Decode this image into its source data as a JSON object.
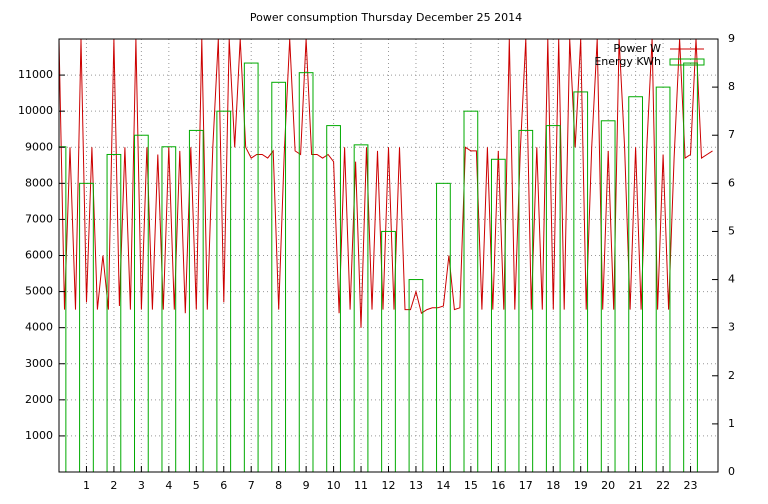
{
  "chart_data": {
    "type": "line",
    "title": "Power consumption Thursday December 25 2014",
    "xlim": [
      0,
      24
    ],
    "xticks": [
      1,
      2,
      3,
      4,
      5,
      6,
      7,
      8,
      9,
      10,
      11,
      12,
      13,
      14,
      15,
      16,
      17,
      18,
      19,
      20,
      21,
      22,
      23
    ],
    "ylim": [
      0,
      12000
    ],
    "yticks": [
      1000,
      2000,
      3000,
      4000,
      5000,
      6000,
      7000,
      8000,
      9000,
      10000,
      11000
    ],
    "y2lim": [
      0,
      9
    ],
    "y2ticks": [
      0,
      1,
      2,
      3,
      4,
      5,
      6,
      7,
      8,
      9
    ],
    "grid": true,
    "legend": "top-right",
    "series": [
      {
        "name": "Power W",
        "color": "#cc0000",
        "axis": "y",
        "x": [
          0,
          0.2,
          0.4,
          0.6,
          0.8,
          1,
          1.2,
          1.4,
          1.6,
          1.8,
          2,
          2.2,
          2.4,
          2.6,
          2.8,
          3,
          3.2,
          3.4,
          3.6,
          3.8,
          4,
          4.2,
          4.4,
          4.6,
          4.8,
          5,
          5.2,
          5.4,
          5.6,
          5.8,
          6,
          6.2,
          6.4,
          6.6,
          6.8,
          7,
          7.2,
          7.4,
          7.6,
          7.8,
          8,
          8.2,
          8.4,
          8.6,
          8.8,
          9,
          9.2,
          9.4,
          9.6,
          9.8,
          10,
          10.2,
          10.4,
          10.6,
          10.8,
          11,
          11.2,
          11.4,
          11.6,
          11.8,
          12,
          12.2,
          12.4,
          12.6,
          12.8,
          13,
          13.2,
          13.4,
          13.6,
          13.8,
          14,
          14.2,
          14.4,
          14.6,
          14.8,
          15,
          15.2,
          15.4,
          15.6,
          15.8,
          16,
          16.2,
          16.4,
          16.6,
          16.8,
          17,
          17.2,
          17.4,
          17.6,
          17.8,
          18,
          18.2,
          18.4,
          18.6,
          18.8,
          19,
          19.2,
          19.4,
          19.6,
          19.8,
          20,
          20.2,
          20.4,
          20.6,
          20.8,
          21,
          21.2,
          21.4,
          21.6,
          21.8,
          22,
          22.2,
          22.4,
          22.6,
          22.8,
          23,
          23.2,
          23.4,
          23.6,
          23.8
        ],
        "values": [
          12000,
          4500,
          9000,
          4500,
          12000,
          4700,
          9000,
          4500,
          6000,
          4500,
          12000,
          4600,
          9000,
          4500,
          12000,
          4500,
          9000,
          4500,
          8800,
          4500,
          9000,
          4500,
          8900,
          4400,
          9000,
          4500,
          12000,
          4500,
          9000,
          12000,
          4700,
          12000,
          9000,
          12000,
          9000,
          8700,
          8800,
          8800,
          8700,
          8900,
          4500,
          8800,
          12000,
          8900,
          8800,
          12000,
          8800,
          8800,
          8700,
          8800,
          8600,
          4400,
          9000,
          4500,
          8600,
          4000,
          9000,
          4500,
          8900,
          4500,
          9000,
          4500,
          9000,
          4500,
          4500,
          5000,
          4400,
          4500,
          4550,
          4550,
          4600,
          6000,
          4500,
          4550,
          9000,
          8900,
          8900,
          4500,
          9000,
          4500,
          8900,
          4500,
          12000,
          4500,
          8900,
          12000,
          4500,
          9000,
          4500,
          12000,
          4500,
          12000,
          4500,
          12000,
          9000,
          12000,
          4500,
          9000,
          12000,
          4500,
          8900,
          4500,
          12000,
          9000,
          4500,
          9000,
          4500,
          8900,
          12000,
          4500,
          8800,
          4500,
          8700,
          12000,
          8700,
          8800,
          12000,
          8700,
          8800,
          8900
        ]
      },
      {
        "name": "Energy KWh",
        "color": "#00aa00",
        "axis": "y2",
        "x": [
          0,
          1,
          2,
          3,
          4,
          5,
          6,
          7,
          8,
          9,
          10,
          11,
          12,
          13,
          14,
          15,
          16,
          17,
          18,
          19,
          20,
          21,
          22,
          23
        ],
        "values": [
          6.76,
          6.0,
          6.6,
          7.0,
          6.76,
          7.1,
          7.5,
          8.5,
          8.1,
          8.3,
          7.2,
          6.8,
          5.0,
          4.0,
          6.0,
          7.5,
          6.5,
          7.1,
          7.2,
          7.9,
          7.3,
          7.8,
          8.0,
          8.5
        ]
      }
    ]
  }
}
